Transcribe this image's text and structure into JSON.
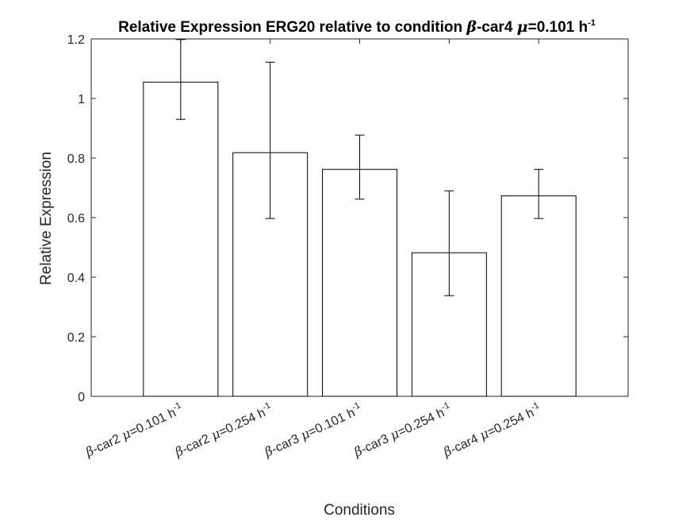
{
  "chart_data": {
    "type": "bar",
    "title": {
      "prefix": "Relative Expression ERG20 relative to condition ",
      "beta": "β",
      "mid": "-car4 ",
      "mu": "μ",
      "value": "=0.101 h",
      "sup": "-1"
    },
    "xlabel": "Conditions",
    "ylabel": "Relative Expression",
    "ylim": [
      0,
      1.2
    ],
    "yticks": [
      0,
      0.2,
      0.4,
      0.6,
      0.8,
      1,
      1.2
    ],
    "ytick_labels": [
      "0",
      "0.2",
      "0.4",
      "0.6",
      "0.8",
      "1",
      "1.2"
    ],
    "categories": [
      {
        "strain": "-car2 ",
        "rate": "=0.101 h",
        "sup": "-1"
      },
      {
        "strain": "-car2 ",
        "rate": "=0.254 h",
        "sup": "-1"
      },
      {
        "strain": "-car3 ",
        "rate": "=0.101 h",
        "sup": "-1"
      },
      {
        "strain": "-car3 ",
        "rate": "=0.254 h",
        "sup": "-1"
      },
      {
        "strain": "-car4 ",
        "rate": "=0.254 h",
        "sup": "-1"
      }
    ],
    "category_greek": {
      "beta": "β",
      "mu": "μ"
    },
    "values": [
      1.055,
      0.818,
      0.762,
      0.482,
      0.673
    ],
    "error_low": [
      0.93,
      0.597,
      0.662,
      0.338,
      0.597
    ],
    "error_high": [
      1.198,
      1.122,
      0.877,
      0.69,
      0.762
    ],
    "colors": {
      "bar_fill": "#ffffff",
      "bar_stroke": "#000000",
      "axis": "#262626"
    },
    "grid": false,
    "legend": "none"
  }
}
